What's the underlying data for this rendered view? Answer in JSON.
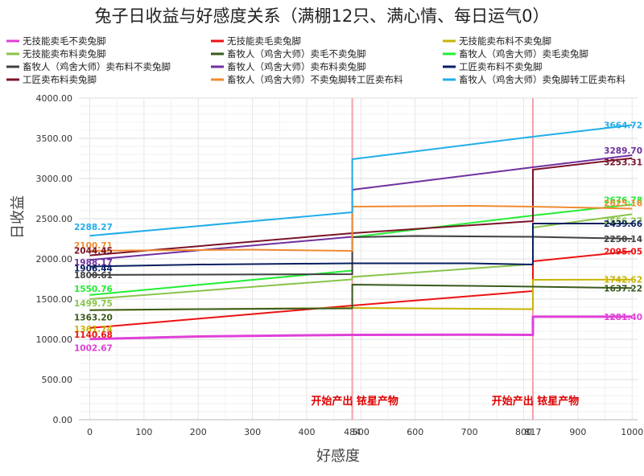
{
  "chart_data": {
    "type": "line",
    "title": "兔子日收益与好感度关系（满棚12只、满心情、每日运气0）",
    "xlabel": "好感度",
    "ylabel": "日收益",
    "xlim": [
      -20,
      1010
    ],
    "ylim": [
      0,
      4000
    ],
    "x_ticks": [
      "0",
      "100",
      "200",
      "300",
      "400",
      "484",
      "500",
      "600",
      "700",
      "800",
      "817",
      "900",
      "1000"
    ],
    "y_ticks": [
      "0.00",
      "500.00",
      "1000.00",
      "1500.00",
      "2000.00",
      "2500.00",
      "3000.00",
      "3500.00",
      "4000.00"
    ],
    "grid": true,
    "legend_position": "top",
    "annotations": [
      {
        "x": 484,
        "text": "开始产出 铱星产物"
      },
      {
        "x": 817,
        "text": "开始产出 铱星产物"
      }
    ],
    "series": [
      {
        "name": "无技能卖毛不卖兔脚",
        "color": "#e040d8",
        "width": 3,
        "points": [
          [
            0,
            1002.67
          ],
          [
            200,
            1035
          ],
          [
            400,
            1050
          ],
          [
            484,
            1055
          ],
          [
            484,
            1055
          ],
          [
            700,
            1058
          ],
          [
            817,
            1055
          ],
          [
            817,
            1281.4
          ],
          [
            1000,
            1281.4
          ]
        ],
        "start_label": "1002.67",
        "end_label": "1281.40"
      },
      {
        "name": "无技能卖毛卖兔脚",
        "color": "#ee1111",
        "width": 2,
        "points": [
          [
            0,
            1140.68
          ],
          [
            484,
            1420
          ],
          [
            817,
            1600
          ],
          [
            817,
            1970
          ],
          [
            1000,
            2095.05
          ]
        ],
        "start_label": "1140.68",
        "end_label": "2095.05"
      },
      {
        "name": "无技能卖布料不卖兔脚",
        "color": "#c8b400",
        "width": 2,
        "points": [
          [
            0,
            1361.74
          ],
          [
            200,
            1375
          ],
          [
            484,
            1390
          ],
          [
            700,
            1380
          ],
          [
            817,
            1375
          ],
          [
            817,
            1740
          ],
          [
            1000,
            1742.62
          ]
        ],
        "start_label": "1361.74",
        "end_label": "1742.62"
      },
      {
        "name": "无技能卖布料卖兔脚",
        "color": "#88c44a",
        "width": 2,
        "points": [
          [
            0,
            1499.75
          ],
          [
            484,
            1745
          ],
          [
            484,
            1775
          ],
          [
            817,
            1935
          ],
          [
            817,
            2390
          ],
          [
            1000,
            2556.27
          ]
        ],
        "start_label": "1499.75",
        "end_label": "2556.27"
      },
      {
        "name": "畜牧人（鸡舍大师）卖毛不卖兔脚",
        "color": "#3a5a1c",
        "width": 2,
        "points": [
          [
            0,
            1363.2
          ],
          [
            200,
            1375
          ],
          [
            484,
            1385
          ],
          [
            484,
            1680
          ],
          [
            700,
            1665
          ],
          [
            817,
            1655
          ],
          [
            1000,
            1637.22
          ]
        ],
        "start_label": "1363.20",
        "end_label": "1637.22"
      },
      {
        "name": "畜牧人（鸡舍大师）卖毛卖兔脚",
        "color": "#22ee33",
        "width": 2,
        "points": [
          [
            0,
            1550.76
          ],
          [
            484,
            1855
          ],
          [
            484,
            2270
          ],
          [
            817,
            2540
          ],
          [
            1000,
            2676.78
          ]
        ],
        "start_label": "1550.76",
        "end_label": "2676.78"
      },
      {
        "name": "畜牧人（鸡舍大师）卖布料不卖兔脚",
        "color": "#404040",
        "width": 2,
        "points": [
          [
            0,
            1800.61
          ],
          [
            200,
            1805
          ],
          [
            484,
            1810
          ],
          [
            484,
            2270
          ],
          [
            600,
            2285
          ],
          [
            817,
            2275
          ],
          [
            1000,
            2250.14
          ]
        ],
        "start_label": "1800.61",
        "end_label": "2250.14"
      },
      {
        "name": "畜牧人（鸡舍大师）卖布料卖兔脚",
        "color": "#7030a0",
        "width": 2,
        "points": [
          [
            0,
            1988.17
          ],
          [
            484,
            2275
          ],
          [
            484,
            2860
          ],
          [
            817,
            3140
          ],
          [
            1000,
            3289.7
          ]
        ],
        "start_label": "1988.17",
        "end_label": "3289.70"
      },
      {
        "name": "工匠卖布料不卖兔脚",
        "color": "#0a1e60",
        "width": 2,
        "points": [
          [
            0,
            1906.44
          ],
          [
            200,
            1930
          ],
          [
            484,
            1945
          ],
          [
            700,
            1945
          ],
          [
            817,
            1930
          ],
          [
            817,
            2440
          ],
          [
            1000,
            2439.66
          ]
        ],
        "start_label": "1906.44",
        "end_label": "2439.66"
      },
      {
        "name": "工匠卖布料卖兔脚",
        "color": "#7a1428",
        "width": 2,
        "points": [
          [
            0,
            2044.45
          ],
          [
            484,
            2320
          ],
          [
            817,
            2470
          ],
          [
            817,
            3110
          ],
          [
            1000,
            3253.31
          ]
        ],
        "start_label": "2044.45",
        "end_label": "3253.31"
      },
      {
        "name": "畜牧人（鸡舍大师）不卖兔脚转工匠卖布料",
        "color": "#f08a30",
        "width": 2,
        "points": [
          [
            0,
            2100.71
          ],
          [
            300,
            2115
          ],
          [
            484,
            2100
          ],
          [
            484,
            2650
          ],
          [
            700,
            2660
          ],
          [
            817,
            2650
          ],
          [
            1000,
            2625.16
          ]
        ],
        "start_label": "2100.71",
        "end_label": "2625.16"
      },
      {
        "name": "畜牧人（鸡舍大师）卖兔脚转工匠卖布料",
        "color": "#20aee8",
        "width": 2,
        "points": [
          [
            0,
            2288.27
          ],
          [
            484,
            2580
          ],
          [
            484,
            3240
          ],
          [
            817,
            3520
          ],
          [
            1000,
            3664.72
          ]
        ],
        "start_label": "2288.27",
        "end_label": "3664.72"
      }
    ],
    "data_labels": [
      {
        "x": 0,
        "y": 2288.27,
        "text": "2288.27",
        "series": 11,
        "anchor": "end"
      },
      {
        "x": 0,
        "y": 2100.71,
        "text": "2100.71",
        "series": 10,
        "anchor": "end"
      },
      {
        "x": 0,
        "y": 2044.45,
        "text": "2044.45",
        "series": 9,
        "anchor": "start"
      },
      {
        "x": 0,
        "y": 1988.17,
        "text": "1988.17",
        "series": 7,
        "anchor": "start"
      },
      {
        "x": 0,
        "y": 1906.44,
        "text": "1906.44",
        "series": 8,
        "anchor": "start"
      },
      {
        "x": 0,
        "y": 1800.61,
        "text": "1800.61",
        "series": 6,
        "anchor": "start"
      },
      {
        "x": 0,
        "y": 1550.76,
        "text": "1550.76",
        "series": 5,
        "anchor": "end"
      },
      {
        "x": 0,
        "y": 1499.75,
        "text": "1499.75",
        "series": 3,
        "anchor": "end"
      },
      {
        "x": 0,
        "y": 1363.2,
        "text": "1363.20",
        "series": 4,
        "anchor": "end"
      },
      {
        "x": 0,
        "y": 1361.74,
        "text": "1361.74",
        "series": 2,
        "anchor": "end"
      },
      {
        "x": 0,
        "y": 1140.68,
        "text": "1140.68",
        "series": 1,
        "anchor": "end"
      },
      {
        "x": 0,
        "y": 1002.67,
        "text": "1002.67",
        "series": 0,
        "anchor": "end"
      },
      {
        "x": 1000,
        "y": 3664.72,
        "text": "3664.72",
        "series": 11,
        "anchor": "end"
      },
      {
        "x": 1000,
        "y": 3289.7,
        "text": "3289.70",
        "series": 7,
        "anchor": "end"
      },
      {
        "x": 1000,
        "y": 3253.31,
        "text": "3253.31",
        "series": 9,
        "anchor": "end"
      },
      {
        "x": 1000,
        "y": 2676.78,
        "text": "2676.78",
        "series": 5,
        "anchor": "end"
      },
      {
        "x": 1000,
        "y": 2625.16,
        "text": "2625.16",
        "series": 10,
        "anchor": "end"
      },
      {
        "x": 1000,
        "y": 2556.27,
        "text": "2556.27",
        "series": 3,
        "anchor": "end"
      },
      {
        "x": 1000,
        "y": 2439.66,
        "text": "2439.66",
        "series": 8,
        "anchor": "end"
      },
      {
        "x": 1000,
        "y": 2250.14,
        "text": "2250.14",
        "series": 6,
        "anchor": "end"
      },
      {
        "x": 1000,
        "y": 2095.05,
        "text": "2095.05",
        "series": 1,
        "anchor": "end"
      },
      {
        "x": 1000,
        "y": 1742.62,
        "text": "1742.62",
        "series": 2,
        "anchor": "end"
      },
      {
        "x": 1000,
        "y": 1637.22,
        "text": "1637.22",
        "series": 4,
        "anchor": "end"
      },
      {
        "x": 1000,
        "y": 1281.4,
        "text": "1281.40",
        "series": 0,
        "anchor": "end"
      }
    ]
  }
}
